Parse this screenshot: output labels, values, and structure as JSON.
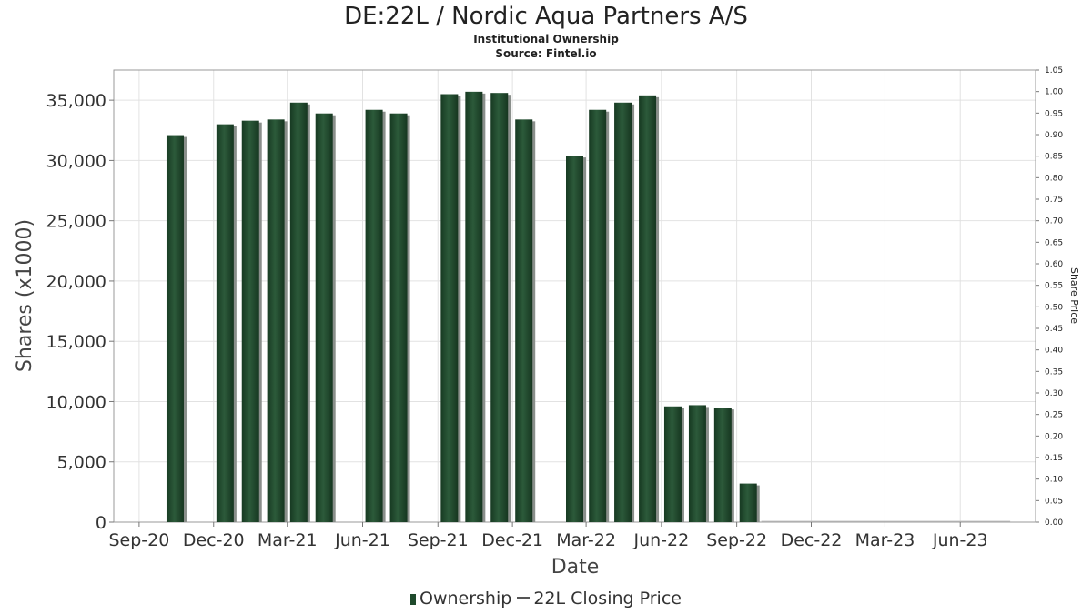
{
  "chart_data": {
    "type": "bar",
    "title": "DE:22L / Nordic Aqua Partners A/S",
    "subtitle": "Institutional Ownership",
    "source": "Source: Fintel.io",
    "xlabel": "Date",
    "ylabel": "Shares (x1000)",
    "y2label": "Share Price",
    "ylim": [
      0,
      37500
    ],
    "y2lim": [
      0,
      1.05
    ],
    "yticks": [
      "0",
      "5,000",
      "10,000",
      "15,000",
      "20,000",
      "25,000",
      "30,000",
      "35,000"
    ],
    "y2ticks": [
      "0.00",
      "0.05",
      "0.10",
      "0.15",
      "0.20",
      "0.25",
      "0.30",
      "0.35",
      "0.40",
      "0.45",
      "0.50",
      "0.55",
      "0.60",
      "0.65",
      "0.70",
      "0.75",
      "0.80",
      "0.85",
      "0.90",
      "0.95",
      "1.00",
      "1.05"
    ],
    "xticks": [
      "Sep-20",
      "Dec-20",
      "Mar-21",
      "Jun-21",
      "Sep-21",
      "Dec-21",
      "Mar-22",
      "Jun-22",
      "Sep-22",
      "Dec-22",
      "Mar-23",
      "Jun-23"
    ],
    "grid": true,
    "legend_position": "bottom",
    "legend": [
      "Ownership",
      "22L Closing Price"
    ],
    "series": [
      {
        "name": "Ownership",
        "color": "#1f4a2c",
        "x": [
          "2020-10-15",
          "2020-12-15",
          "2021-01-15",
          "2021-02-15",
          "2021-03-15",
          "2021-04-15",
          "2021-06-15",
          "2021-07-15",
          "2021-09-15",
          "2021-10-15",
          "2021-11-15",
          "2021-12-15",
          "2022-02-15",
          "2022-03-15",
          "2022-04-15",
          "2022-05-15",
          "2022-06-15",
          "2022-07-15",
          "2022-08-15",
          "2022-09-15"
        ],
        "values": [
          32100,
          33000,
          33300,
          33400,
          34800,
          33900,
          34200,
          33900,
          35500,
          35700,
          35600,
          33400,
          30400,
          34200,
          34800,
          35400,
          9600,
          9700,
          9500,
          3200
        ]
      },
      {
        "name": "22L Closing Price",
        "color": "#555555",
        "x": [],
        "values": []
      }
    ]
  }
}
